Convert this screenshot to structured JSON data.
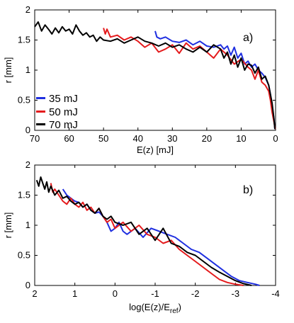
{
  "colors": {
    "35 mJ": "#1f2fe0",
    "50 mJ": "#e41a1c",
    "70 mJ": "#000000"
  },
  "chart_data": [
    {
      "type": "line",
      "panel_label": "a)",
      "xlabel": "E(z) [mJ]",
      "ylabel": "r [mm]",
      "xlim": [
        70,
        0
      ],
      "ylim": [
        0,
        2
      ],
      "x_reversed": true,
      "xticks": [
        70,
        60,
        50,
        40,
        30,
        20,
        10,
        0
      ],
      "yticks": [
        0,
        0.5,
        1,
        1.5,
        2
      ],
      "ytick_labels": [
        "0",
        "0.5",
        "1",
        "1.5",
        "2"
      ],
      "legend": {
        "position": "lower-left",
        "entries": [
          "35 mJ",
          "50 mJ",
          "70 mJ"
        ]
      },
      "series": [
        {
          "name": "35 mJ",
          "color": "#1f2fe0",
          "x": [
            35.0,
            34.5,
            33.5,
            32,
            30,
            28,
            26,
            24,
            22,
            20,
            18,
            16,
            15,
            14,
            13,
            12,
            11,
            10,
            9,
            8,
            7,
            6,
            5,
            4,
            3,
            2,
            1.5,
            1,
            0.5,
            0.2
          ],
          "y": [
            1.65,
            1.55,
            1.52,
            1.55,
            1.48,
            1.46,
            1.5,
            1.42,
            1.48,
            1.4,
            1.38,
            1.42,
            1.35,
            1.4,
            1.25,
            1.38,
            1.2,
            1.28,
            1.1,
            1.15,
            1.05,
            1.1,
            1.0,
            0.95,
            0.88,
            0.75,
            0.6,
            0.4,
            0.2,
            0.02
          ]
        },
        {
          "name": "50 mJ",
          "color": "#e41a1c",
          "x": [
            50,
            49.5,
            49,
            48,
            46,
            44,
            42,
            40,
            38,
            36,
            34,
            32,
            30,
            28,
            26,
            24,
            22,
            20,
            18,
            16,
            14,
            12,
            10,
            8,
            7,
            6,
            5,
            4,
            3,
            2,
            1.5,
            1,
            0.5,
            0.1
          ],
          "y": [
            1.7,
            1.6,
            1.68,
            1.55,
            1.58,
            1.5,
            1.55,
            1.48,
            1.38,
            1.45,
            1.3,
            1.35,
            1.42,
            1.28,
            1.45,
            1.35,
            1.4,
            1.3,
            1.2,
            1.35,
            1.25,
            1.1,
            1.18,
            1.05,
            1.0,
            0.85,
            1.0,
            0.8,
            0.75,
            0.65,
            0.5,
            0.3,
            0.15,
            0.02
          ]
        },
        {
          "name": "70 mJ",
          "color": "#000000",
          "x": [
            70,
            69,
            68,
            67,
            66,
            65,
            64,
            63,
            62,
            61,
            60,
            59,
            58,
            57,
            56,
            55,
            54,
            53,
            52,
            51,
            50,
            48,
            46,
            44,
            42,
            40,
            38,
            36,
            34,
            32,
            30,
            28,
            26,
            24,
            22,
            20,
            18,
            16,
            15,
            14,
            13,
            12,
            11,
            10,
            9,
            8,
            7,
            6,
            5,
            4,
            3,
            2,
            1.5,
            1,
            0.5,
            0.2
          ],
          "y": [
            1.72,
            1.8,
            1.65,
            1.75,
            1.68,
            1.6,
            1.7,
            1.62,
            1.72,
            1.65,
            1.68,
            1.6,
            1.75,
            1.65,
            1.58,
            1.62,
            1.55,
            1.58,
            1.48,
            1.55,
            1.5,
            1.48,
            1.52,
            1.45,
            1.5,
            1.55,
            1.48,
            1.45,
            1.4,
            1.45,
            1.38,
            1.42,
            1.35,
            1.3,
            1.38,
            1.3,
            1.42,
            1.35,
            1.2,
            1.3,
            1.1,
            1.25,
            1.05,
            1.2,
            1.0,
            1.1,
            1.08,
            0.95,
            1.05,
            0.85,
            0.9,
            0.75,
            0.6,
            0.45,
            0.2,
            0.02
          ]
        }
      ]
    },
    {
      "type": "line",
      "panel_label": "b)",
      "xlabel": "log(E(z)/E",
      "xlabel_sub": "ref",
      "xlabel_close": ")",
      "ylabel": "r [mm]",
      "xlim": [
        2,
        -4
      ],
      "ylim": [
        0,
        2
      ],
      "x_reversed": true,
      "xticks": [
        2,
        1,
        0,
        -1,
        -2,
        -3,
        -4
      ],
      "yticks": [
        0,
        0.5,
        1,
        1.5,
        2
      ],
      "ytick_labels": [
        "0",
        "0.5",
        "1",
        "1.5",
        "2"
      ],
      "series": [
        {
          "name": "35 mJ",
          "color": "#1f2fe0",
          "x": [
            1.3,
            1.2,
            1.1,
            1.0,
            0.9,
            0.8,
            0.7,
            0.6,
            0.5,
            0.4,
            0.3,
            0.2,
            0.1,
            0.0,
            -0.1,
            -0.2,
            -0.3,
            -0.5,
            -0.7,
            -0.9,
            -1.1,
            -1.3,
            -1.5,
            -1.7,
            -1.9,
            -2.1,
            -2.3,
            -2.5,
            -2.7,
            -2.9,
            -3.1,
            -3.3,
            -3.5,
            -3.6
          ],
          "y": [
            1.6,
            1.5,
            1.45,
            1.4,
            1.38,
            1.3,
            1.35,
            1.25,
            1.2,
            1.22,
            1.15,
            1.05,
            0.9,
            0.95,
            1.05,
            0.9,
            0.85,
            0.95,
            0.8,
            0.95,
            0.9,
            0.85,
            0.8,
            0.7,
            0.6,
            0.55,
            0.45,
            0.35,
            0.25,
            0.15,
            0.08,
            0.05,
            0.02,
            0.0
          ]
        },
        {
          "name": "50 mJ",
          "color": "#e41a1c",
          "x": [
            1.6,
            1.55,
            1.5,
            1.4,
            1.3,
            1.2,
            1.1,
            1.0,
            0.9,
            0.8,
            0.7,
            0.6,
            0.5,
            0.4,
            0.3,
            0.2,
            0.1,
            0.0,
            -0.2,
            -0.4,
            -0.6,
            -0.8,
            -1.0,
            -1.2,
            -1.4,
            -1.6,
            -1.8,
            -2.0,
            -2.2,
            -2.4,
            -2.6,
            -2.8,
            -3.0,
            -3.2
          ],
          "y": [
            1.7,
            1.55,
            1.6,
            1.5,
            1.4,
            1.35,
            1.45,
            1.35,
            1.3,
            1.38,
            1.25,
            1.3,
            1.2,
            1.28,
            1.15,
            1.05,
            1.1,
            0.95,
            1.05,
            0.9,
            1.0,
            0.85,
            0.8,
            0.7,
            0.75,
            0.6,
            0.5,
            0.4,
            0.3,
            0.2,
            0.1,
            0.05,
            0.02,
            0.0
          ]
        },
        {
          "name": "70 mJ",
          "color": "#000000",
          "x": [
            1.95,
            1.9,
            1.85,
            1.8,
            1.75,
            1.7,
            1.65,
            1.6,
            1.5,
            1.4,
            1.3,
            1.2,
            1.1,
            1.0,
            0.9,
            0.8,
            0.7,
            0.6,
            0.5,
            0.4,
            0.3,
            0.2,
            0.1,
            0.0,
            -0.2,
            -0.4,
            -0.6,
            -0.8,
            -1.0,
            -1.2,
            -1.4,
            -1.6,
            -1.8,
            -2.0,
            -2.2,
            -2.4,
            -2.6,
            -2.8,
            -3.0,
            -3.2,
            -3.4
          ],
          "y": [
            1.75,
            1.65,
            1.8,
            1.7,
            1.6,
            1.72,
            1.55,
            1.65,
            1.5,
            1.58,
            1.45,
            1.48,
            1.4,
            1.35,
            1.38,
            1.3,
            1.35,
            1.25,
            1.2,
            1.28,
            1.15,
            1.1,
            1.15,
            1.05,
            1.0,
            1.05,
            0.85,
            0.95,
            0.75,
            0.95,
            0.7,
            0.65,
            0.55,
            0.5,
            0.4,
            0.3,
            0.22,
            0.15,
            0.08,
            0.03,
            0.0
          ]
        }
      ]
    }
  ]
}
